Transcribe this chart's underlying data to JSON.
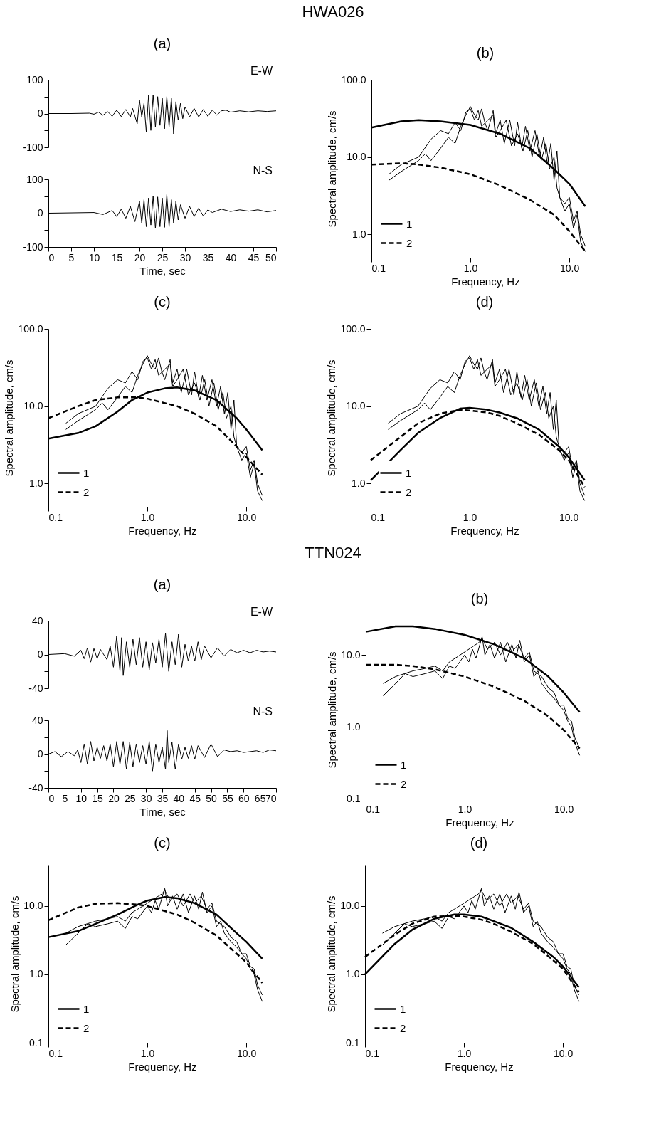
{
  "chart_data": [
    {
      "type": "other",
      "title": "HWA026"
    },
    {
      "type": "line",
      "title": "(a)",
      "annotations": [
        "E-W"
      ],
      "tick_labels": "y",
      "xlim": [
        0,
        50
      ],
      "ylim": [
        -100,
        100
      ],
      "xticks": [
        0,
        5,
        10,
        15,
        20,
        25,
        30,
        35,
        40,
        45,
        50
      ],
      "yticks": [
        -100,
        {
          "value": -50,
          "label": null
        },
        0,
        {
          "value": 50,
          "label": null
        },
        100
      ],
      "grid": false,
      "x": [
        0,
        5,
        9,
        10,
        11,
        12,
        13,
        14,
        15,
        16,
        17,
        18,
        18.5,
        19,
        19.5,
        20,
        20.5,
        21,
        21.5,
        22,
        22.5,
        23,
        23.5,
        24,
        24.5,
        25,
        25.5,
        26,
        26.5,
        27,
        27.5,
        28,
        28.5,
        29,
        29.5,
        30,
        31,
        32,
        33,
        34,
        35,
        36,
        37,
        38,
        39,
        40,
        42,
        44,
        46,
        48,
        50
      ],
      "series": [
        {
          "color": "#000000",
          "values": [
            0,
            0,
            1,
            -2,
            4,
            -5,
            6,
            -8,
            10,
            -9,
            12,
            -10,
            15,
            -8,
            -30,
            40,
            -10,
            30,
            -55,
            55,
            -50,
            55,
            -40,
            50,
            -35,
            45,
            -45,
            50,
            -40,
            45,
            -60,
            35,
            -20,
            30,
            -15,
            20,
            -10,
            15,
            -10,
            12,
            -8,
            10,
            -5,
            8,
            10,
            4,
            8,
            5,
            8,
            6,
            8
          ]
        }
      ]
    },
    {
      "type": "line",
      "xlabel": "Time, sec",
      "annotations": [
        "N-S"
      ],
      "xlim": [
        0,
        50
      ],
      "ylim": [
        -100,
        100
      ],
      "xticks": [
        0,
        5,
        10,
        15,
        20,
        25,
        30,
        35,
        40,
        45,
        50
      ],
      "yticks": [
        -100,
        {
          "value": -50,
          "label": null
        },
        0,
        {
          "value": 50,
          "label": null
        },
        100
      ],
      "grid": false,
      "x": [
        0,
        10,
        12,
        14,
        15,
        16,
        17,
        18,
        19,
        20,
        20.5,
        21,
        21.5,
        22,
        22.5,
        23,
        23.5,
        24,
        24.5,
        25,
        25.5,
        26,
        26.5,
        27,
        27.5,
        28,
        28.5,
        29,
        30,
        31,
        32,
        33,
        34,
        35,
        36,
        38,
        40,
        42,
        44,
        46,
        48,
        50
      ],
      "series": [
        {
          "color": "#000000",
          "values": [
            0,
            2,
            -4,
            8,
            -10,
            12,
            -15,
            20,
            -25,
            35,
            -30,
            40,
            -40,
            45,
            -35,
            50,
            -45,
            48,
            -40,
            45,
            -42,
            55,
            -40,
            40,
            -30,
            35,
            -20,
            25,
            -15,
            20,
            -10,
            15,
            -8,
            10,
            2,
            12,
            5,
            10,
            6,
            10,
            4,
            8
          ]
        }
      ]
    },
    {
      "type": "line",
      "title": "(b)",
      "xlabel": "Frequency, Hz",
      "ylabel": "Spectral amplitude, cm/s",
      "log": "xy",
      "grid": false,
      "legend": "bottom left",
      "xlim": [
        0.1,
        20
      ],
      "ylim": [
        0.5,
        100
      ],
      "xticks": [
        {
          "value": 0.1,
          "label": "0.1"
        },
        {
          "value": 1,
          "label": "1.0"
        },
        {
          "value": 10,
          "label": "10.0"
        }
      ],
      "yticks": [
        {
          "value": 1,
          "label": "1.0"
        },
        {
          "value": 10,
          "label": "10.0"
        },
        {
          "value": 100,
          "label": "100.0"
        }
      ],
      "series": [
        {
          "color": "#000000",
          "line_style": "solid",
          "x": [
            0.15,
            0.2,
            0.3,
            0.35,
            0.4,
            0.5,
            0.6,
            0.7,
            0.8,
            0.9,
            1.0,
            1.1,
            1.2,
            1.3,
            1.4,
            1.5,
            1.7,
            1.8,
            2,
            2.2,
            2.5,
            2.8,
            3,
            3.3,
            3.6,
            4,
            4.5,
            5,
            5.5,
            6,
            6.5,
            7,
            7.5,
            8,
            9,
            10,
            11,
            12,
            13,
            14.5
          ],
          "values": [
            5,
            6.5,
            9,
            11,
            9,
            13,
            18,
            15,
            25,
            35,
            45,
            35,
            30,
            42,
            28,
            22,
            40,
            20,
            30,
            15,
            30,
            14,
            28,
            13,
            25,
            12,
            22,
            10,
            18,
            8,
            15,
            5,
            12,
            3,
            2.5,
            3,
            1.5,
            2,
            1,
            0.7
          ]
        },
        {
          "color": "#000000",
          "line_style": "solid",
          "x": [
            0.15,
            0.2,
            0.3,
            0.4,
            0.5,
            0.6,
            0.7,
            0.8,
            0.9,
            1.0,
            1.1,
            1.2,
            1.3,
            1.5,
            1.7,
            1.8,
            2,
            2.3,
            2.6,
            3,
            3.4,
            3.8,
            4.2,
            4.7,
            5.2,
            5.8,
            6.3,
            7,
            7.5,
            8,
            9,
            10,
            11,
            12,
            13,
            14.5
          ],
          "values": [
            6,
            8,
            10,
            17,
            22,
            20,
            28,
            22,
            38,
            42,
            30,
            40,
            25,
            30,
            35,
            18,
            22,
            30,
            14,
            20,
            12,
            22,
            10,
            20,
            9,
            15,
            7,
            10,
            4,
            3,
            2,
            2.5,
            1.2,
            1.8,
            0.8,
            0.6
          ]
        },
        {
          "name": "1",
          "color": "#000000",
          "line_style": "solid",
          "x": [
            0.1,
            0.2,
            0.3,
            0.5,
            1,
            2,
            4,
            7,
            10,
            14.5
          ],
          "values": [
            24,
            29,
            30,
            29,
            26,
            20,
            13,
            7,
            4.5,
            2.3
          ]
        },
        {
          "name": "2",
          "color": "#000000",
          "line_style": "dashed",
          "x": [
            0.1,
            0.2,
            0.3,
            0.5,
            1,
            2,
            4,
            7,
            10,
            14.5
          ],
          "values": [
            8,
            8.3,
            8,
            7.3,
            6,
            4.3,
            2.8,
            1.8,
            1.1,
            0.6
          ]
        }
      ]
    },
    {
      "type": "line",
      "title": "(c)",
      "xlabel": "Frequency, Hz",
      "ylabel": "Spectral amplitude, cm/s",
      "log": "xy",
      "grid": false,
      "legend": "bottom left",
      "xlim": [
        0.1,
        20
      ],
      "ylim": [
        0.5,
        100
      ],
      "xticks": [
        {
          "value": 0.1,
          "label": "0.1"
        },
        {
          "value": 1,
          "label": "1.0"
        },
        {
          "value": 10,
          "label": "10.0"
        }
      ],
      "yticks": [
        {
          "value": 1,
          "label": "1.0"
        },
        {
          "value": 10,
          "label": "10.0"
        },
        {
          "value": 100,
          "label": "100.0"
        }
      ],
      "series": [
        {
          "color": "#000000",
          "line_style": "solid",
          "x": [
            0.15,
            0.2,
            0.3,
            0.35,
            0.4,
            0.5,
            0.6,
            0.7,
            0.8,
            0.9,
            1.0,
            1.1,
            1.2,
            1.3,
            1.4,
            1.5,
            1.7,
            1.8,
            2,
            2.2,
            2.5,
            2.8,
            3,
            3.3,
            3.6,
            4,
            4.5,
            5,
            5.5,
            6,
            6.5,
            7,
            7.5,
            8,
            9,
            10,
            11,
            12,
            13,
            14.5
          ],
          "values": [
            5,
            6.5,
            9,
            11,
            9,
            13,
            18,
            15,
            25,
            35,
            45,
            35,
            30,
            42,
            28,
            22,
            40,
            20,
            30,
            15,
            30,
            14,
            28,
            13,
            25,
            12,
            22,
            10,
            18,
            8,
            15,
            5,
            12,
            3,
            2.5,
            3,
            1.5,
            2,
            1,
            0.7
          ]
        },
        {
          "color": "#000000",
          "line_style": "solid",
          "x": [
            0.15,
            0.2,
            0.3,
            0.4,
            0.5,
            0.6,
            0.7,
            0.8,
            0.9,
            1.0,
            1.1,
            1.2,
            1.3,
            1.5,
            1.7,
            1.8,
            2,
            2.3,
            2.6,
            3,
            3.4,
            3.8,
            4.2,
            4.7,
            5.2,
            5.8,
            6.3,
            7,
            7.5,
            8,
            9,
            10,
            11,
            12,
            13,
            14.5
          ],
          "values": [
            6,
            8,
            10,
            17,
            22,
            20,
            28,
            22,
            38,
            42,
            30,
            40,
            25,
            30,
            35,
            18,
            22,
            30,
            14,
            20,
            12,
            22,
            10,
            20,
            9,
            15,
            7,
            10,
            4,
            3,
            2,
            2.5,
            1.2,
            1.8,
            0.8,
            0.6
          ]
        },
        {
          "name": "1",
          "color": "#000000",
          "line_style": "solid",
          "x": [
            0.1,
            0.2,
            0.3,
            0.5,
            0.7,
            1,
            1.5,
            2,
            3,
            5,
            8,
            10,
            14.5
          ],
          "values": [
            3.8,
            4.5,
            5.5,
            8.5,
            12,
            15,
            17,
            17.5,
            16,
            12,
            7,
            5,
            2.7
          ]
        },
        {
          "name": "2",
          "color": "#000000",
          "line_style": "dashed",
          "x": [
            0.1,
            0.2,
            0.3,
            0.5,
            0.8,
            1,
            2,
            3,
            5,
            8,
            10,
            14.5
          ],
          "values": [
            7,
            10,
            12,
            13,
            13,
            12.5,
            10,
            8,
            5.5,
            3,
            2.2,
            1.3
          ]
        }
      ]
    },
    {
      "type": "line",
      "title": "(d)",
      "xlabel": "Frequency, Hz",
      "ylabel": "Spectral amplitude, cm/s",
      "log": "xy",
      "grid": false,
      "legend": "bottom left",
      "xlim": [
        0.1,
        20
      ],
      "ylim": [
        0.5,
        100
      ],
      "xticks": [
        {
          "value": 0.1,
          "label": "0.1"
        },
        {
          "value": 1,
          "label": "1.0"
        },
        {
          "value": 10,
          "label": "10.0"
        }
      ],
      "yticks": [
        {
          "value": 1,
          "label": "1.0"
        },
        {
          "value": 10,
          "label": "10.0"
        },
        {
          "value": 100,
          "label": "100.0"
        }
      ],
      "series": [
        {
          "color": "#000000",
          "line_style": "solid",
          "x": [
            0.15,
            0.2,
            0.3,
            0.35,
            0.4,
            0.5,
            0.6,
            0.7,
            0.8,
            0.9,
            1.0,
            1.1,
            1.2,
            1.3,
            1.4,
            1.5,
            1.7,
            1.8,
            2,
            2.2,
            2.5,
            2.8,
            3,
            3.3,
            3.6,
            4,
            4.5,
            5,
            5.5,
            6,
            6.5,
            7,
            7.5,
            8,
            9,
            10,
            11,
            12,
            13,
            14.5
          ],
          "values": [
            5,
            6.5,
            9,
            11,
            9,
            13,
            18,
            15,
            25,
            35,
            45,
            35,
            30,
            42,
            28,
            22,
            40,
            20,
            30,
            15,
            30,
            14,
            28,
            13,
            25,
            12,
            22,
            10,
            18,
            8,
            15,
            5,
            12,
            3,
            2.5,
            3,
            1.5,
            2,
            1,
            0.7
          ]
        },
        {
          "color": "#000000",
          "line_style": "solid",
          "x": [
            0.15,
            0.2,
            0.3,
            0.4,
            0.5,
            0.6,
            0.7,
            0.8,
            0.9,
            1.0,
            1.1,
            1.2,
            1.3,
            1.5,
            1.7,
            1.8,
            2,
            2.3,
            2.6,
            3,
            3.4,
            3.8,
            4.2,
            4.7,
            5.2,
            5.8,
            6.3,
            7,
            7.5,
            8,
            9,
            10,
            11,
            12,
            13,
            14.5
          ],
          "values": [
            6,
            8,
            10,
            17,
            22,
            20,
            28,
            22,
            38,
            42,
            30,
            40,
            25,
            30,
            35,
            18,
            22,
            30,
            14,
            20,
            12,
            22,
            10,
            20,
            9,
            15,
            7,
            10,
            4,
            3,
            2,
            2.5,
            1.2,
            1.8,
            0.8,
            0.6
          ]
        },
        {
          "name": "1",
          "color": "#000000",
          "line_style": "solid",
          "x": [
            0.1,
            0.2,
            0.3,
            0.5,
            0.8,
            1,
            1.5,
            2,
            3,
            5,
            8,
            10,
            14.5
          ],
          "values": [
            1.1,
            2.7,
            4.5,
            7,
            9.3,
            9.5,
            9,
            8.3,
            7,
            5,
            3,
            2.2,
            1.1
          ]
        },
        {
          "name": "2",
          "color": "#000000",
          "line_style": "dashed",
          "x": [
            0.1,
            0.2,
            0.3,
            0.5,
            0.8,
            1,
            1.5,
            2,
            3,
            5,
            8,
            10,
            14.5
          ],
          "values": [
            2,
            4,
            6,
            8,
            9,
            8.8,
            8.3,
            7.5,
            6,
            4.3,
            2.7,
            2,
            0.9
          ]
        }
      ]
    },
    {
      "type": "other",
      "title": "TTN024"
    },
    {
      "type": "line",
      "title": "(a)",
      "annotations": [
        "E-W"
      ],
      "tick_labels": "y",
      "xlim": [
        0,
        70
      ],
      "ylim": [
        -40,
        40
      ],
      "xticks": [
        0,
        5,
        10,
        15,
        20,
        25,
        30,
        35,
        40,
        45,
        50,
        55,
        60,
        65,
        70
      ],
      "yticks": [
        -40,
        {
          "value": -20,
          "label": null
        },
        0,
        {
          "value": 20,
          "label": null
        },
        40
      ],
      "grid": false,
      "x": [
        0,
        5,
        8,
        10,
        11,
        12,
        13,
        14,
        15,
        16,
        18,
        19,
        20,
        21,
        22,
        22.5,
        23,
        24,
        25,
        26,
        27,
        28,
        29,
        30,
        31,
        32,
        33,
        34,
        35,
        36,
        37,
        38,
        39,
        40,
        41,
        42,
        43,
        44,
        45,
        46,
        47,
        48,
        50,
        52,
        54,
        56,
        58,
        60,
        62,
        64,
        66,
        68,
        70
      ],
      "series": [
        {
          "color": "#000000",
          "values": [
            0,
            1,
            -2,
            5,
            -5,
            8,
            -9,
            7,
            -5,
            6,
            -6,
            10,
            -15,
            22,
            -20,
            20,
            -25,
            15,
            -15,
            18,
            -12,
            20,
            -15,
            15,
            -18,
            14,
            -10,
            18,
            -15,
            25,
            -20,
            15,
            -12,
            24,
            -15,
            12,
            -8,
            10,
            -8,
            15,
            -6,
            10,
            -4,
            8,
            -2,
            6,
            2,
            5,
            2,
            5,
            3,
            4,
            3
          ]
        }
      ]
    },
    {
      "type": "line",
      "xlabel": "Time, sec",
      "annotations": [
        "N-S"
      ],
      "xlim": [
        0,
        70
      ],
      "ylim": [
        -40,
        40
      ],
      "xticks": [
        0,
        5,
        10,
        15,
        20,
        25,
        30,
        35,
        40,
        45,
        50,
        55,
        60,
        65,
        70
      ],
      "yticks": [
        -40,
        {
          "value": -20,
          "label": null
        },
        0,
        {
          "value": 20,
          "label": null
        },
        40
      ],
      "grid": false,
      "x": [
        0,
        2,
        4,
        6,
        8,
        9,
        10,
        11,
        12,
        13,
        14,
        15,
        16,
        17,
        18,
        19,
        20,
        21,
        22,
        23,
        24,
        25,
        26,
        27,
        28,
        29,
        30,
        31,
        32,
        33,
        34,
        35,
        36,
        36.5,
        37,
        38,
        39,
        40,
        41,
        42,
        43,
        44,
        45,
        46,
        48,
        50,
        52,
        54,
        56,
        58,
        60,
        62,
        64,
        66,
        68,
        70
      ],
      "series": [
        {
          "color": "#000000",
          "values": [
            0,
            3,
            -3,
            3,
            -2,
            5,
            -10,
            12,
            -12,
            15,
            -8,
            8,
            -5,
            10,
            -8,
            12,
            -15,
            15,
            -12,
            15,
            -18,
            14,
            -15,
            12,
            -10,
            10,
            -12,
            15,
            -20,
            12,
            -10,
            8,
            -18,
            28,
            -10,
            14,
            -18,
            12,
            -6,
            8,
            -5,
            10,
            -6,
            10,
            -4,
            12,
            -3,
            5,
            3,
            4,
            2,
            3,
            4,
            2,
            5,
            4
          ]
        }
      ]
    },
    {
      "type": "line",
      "title": "(b)",
      "xlabel": "Frequency, Hz",
      "ylabel": "Spectral amplitude, cm/s",
      "log": "xy",
      "grid": false,
      "legend": "bottom left",
      "xlim": [
        0.1,
        20
      ],
      "ylim": [
        0.1,
        30
      ],
      "xticks": [
        {
          "value": 0.1,
          "label": "0.1"
        },
        {
          "value": 1,
          "label": "1.0"
        },
        {
          "value": 10,
          "label": "10.0"
        }
      ],
      "yticks": [
        {
          "value": 0.1,
          "label": "0.1"
        },
        {
          "value": 1,
          "label": "1.0"
        },
        {
          "value": 10,
          "label": "10.0"
        }
      ],
      "series": [
        {
          "color": "#000000",
          "line_style": "solid",
          "x": [
            0.15,
            0.2,
            0.25,
            0.3,
            0.4,
            0.5,
            0.6,
            0.7,
            0.8,
            1.0,
            1.1,
            1.2,
            1.3,
            1.5,
            1.6,
            1.8,
            2,
            2.3,
            2.6,
            3,
            3.3,
            3.6,
            4,
            4.5,
            5,
            5.5,
            6,
            7,
            8,
            9,
            10,
            11,
            12,
            13,
            14.5
          ],
          "values": [
            2.7,
            4,
            5.5,
            5,
            5.5,
            6,
            4.7,
            7,
            6.5,
            10,
            8,
            12,
            9,
            18,
            10,
            14,
            9,
            15,
            8,
            14,
            9,
            16,
            8,
            10,
            5,
            6,
            4,
            3,
            2.5,
            2,
            1.7,
            1.2,
            1,
            0.6,
            0.4
          ]
        },
        {
          "color": "#000000",
          "line_style": "solid",
          "x": [
            0.15,
            0.2,
            0.3,
            0.4,
            0.5,
            0.6,
            0.7,
            0.8,
            1.0,
            1.2,
            1.4,
            1.5,
            1.7,
            2,
            2.3,
            2.7,
            3,
            3.5,
            4,
            4.5,
            5,
            6,
            7,
            8,
            9,
            10,
            11,
            12,
            13,
            14.5
          ],
          "values": [
            4,
            5,
            6,
            6.5,
            7,
            6,
            8,
            9,
            11,
            13,
            15,
            17,
            12,
            15,
            10,
            15,
            11,
            14,
            9,
            11,
            6,
            5,
            3.5,
            3,
            2,
            2,
            1.3,
            1.2,
            0.7,
            0.5
          ]
        },
        {
          "name": "1",
          "color": "#000000",
          "line_style": "solid",
          "x": [
            0.1,
            0.2,
            0.3,
            0.5,
            1,
            2,
            4,
            7,
            10,
            14.5
          ],
          "values": [
            21,
            25,
            25,
            23,
            19,
            14,
            9,
            5,
            3,
            1.6
          ]
        },
        {
          "name": "2",
          "color": "#000000",
          "line_style": "dashed",
          "x": [
            0.1,
            0.2,
            0.3,
            0.5,
            1,
            2,
            4,
            7,
            10,
            14.5
          ],
          "values": [
            7.3,
            7.3,
            7,
            6.3,
            5,
            3.6,
            2.3,
            1.4,
            0.9,
            0.5
          ]
        }
      ]
    },
    {
      "type": "line",
      "title": "(c)",
      "xlabel": "Frequency, Hz",
      "ylabel": "Spectral amplitude, cm/s",
      "log": "xy",
      "grid": false,
      "legend": "bottom left",
      "xlim": [
        0.1,
        20
      ],
      "ylim": [
        0.1,
        40
      ],
      "xticks": [
        {
          "value": 0.1,
          "label": "0.1"
        },
        {
          "value": 1,
          "label": "1.0"
        },
        {
          "value": 10,
          "label": "10.0"
        }
      ],
      "yticks": [
        {
          "value": 0.1,
          "label": "0.1"
        },
        {
          "value": 1,
          "label": "1.0"
        },
        {
          "value": 10,
          "label": "10.0"
        }
      ],
      "series": [
        {
          "color": "#000000",
          "line_style": "solid",
          "x": [
            0.15,
            0.2,
            0.25,
            0.3,
            0.4,
            0.5,
            0.6,
            0.7,
            0.8,
            1.0,
            1.1,
            1.2,
            1.3,
            1.5,
            1.6,
            1.8,
            2,
            2.3,
            2.6,
            3,
            3.3,
            3.6,
            4,
            4.5,
            5,
            5.5,
            6,
            7,
            8,
            9,
            10,
            11,
            12,
            13,
            14.5
          ],
          "values": [
            2.7,
            4,
            5.5,
            5,
            5.5,
            6,
            4.7,
            7,
            6.5,
            10,
            8,
            12,
            9,
            18,
            10,
            14,
            9,
            15,
            8,
            14,
            9,
            16,
            8,
            10,
            5,
            6,
            4,
            3,
            2.5,
            2,
            1.7,
            1.2,
            1,
            0.6,
            0.4
          ]
        },
        {
          "color": "#000000",
          "line_style": "solid",
          "x": [
            0.15,
            0.2,
            0.3,
            0.4,
            0.5,
            0.6,
            0.7,
            0.8,
            1.0,
            1.2,
            1.4,
            1.5,
            1.7,
            2,
            2.3,
            2.7,
            3,
            3.5,
            4,
            4.5,
            5,
            6,
            7,
            8,
            9,
            10,
            11,
            12,
            13,
            14.5
          ],
          "values": [
            4,
            5,
            6,
            6.5,
            7,
            6,
            8,
            9,
            11,
            13,
            15,
            17,
            12,
            15,
            10,
            15,
            11,
            14,
            9,
            11,
            6,
            5,
            3.5,
            3,
            2,
            2,
            1.3,
            1.2,
            0.7,
            0.5
          ]
        },
        {
          "name": "1",
          "color": "#000000",
          "line_style": "solid",
          "x": [
            0.1,
            0.2,
            0.3,
            0.5,
            0.8,
            1,
            1.5,
            2,
            3,
            5,
            8,
            10,
            14.5
          ],
          "values": [
            3.5,
            4.3,
            5.5,
            7.5,
            10.5,
            12,
            13.5,
            13,
            11,
            7.5,
            4,
            3,
            1.7
          ]
        },
        {
          "name": "2",
          "color": "#000000",
          "line_style": "dashed",
          "x": [
            0.1,
            0.2,
            0.3,
            0.5,
            0.8,
            1,
            2,
            3,
            5,
            8,
            10,
            14.5
          ],
          "values": [
            6.2,
            9.5,
            10.8,
            11,
            10.5,
            10,
            7.5,
            5.7,
            3.7,
            2,
            1.5,
            0.75
          ]
        }
      ]
    },
    {
      "type": "line",
      "title": "(d)",
      "xlabel": "Frequency, Hz",
      "ylabel": "Spectral amplitude, cm/s",
      "log": "xy",
      "grid": false,
      "legend": "bottom left",
      "xlim": [
        0.1,
        20
      ],
      "ylim": [
        0.1,
        40
      ],
      "xticks": [
        {
          "value": 0.1,
          "label": "0.1"
        },
        {
          "value": 1,
          "label": "1.0"
        },
        {
          "value": 10,
          "label": "10.0"
        }
      ],
      "yticks": [
        {
          "value": 0.1,
          "label": "0.1"
        },
        {
          "value": 1,
          "label": "1.0"
        },
        {
          "value": 10,
          "label": "10.0"
        }
      ],
      "series": [
        {
          "color": "#000000",
          "line_style": "solid",
          "x": [
            0.15,
            0.2,
            0.25,
            0.3,
            0.4,
            0.5,
            0.6,
            0.7,
            0.8,
            1.0,
            1.1,
            1.2,
            1.3,
            1.5,
            1.6,
            1.8,
            2,
            2.3,
            2.6,
            3,
            3.3,
            3.6,
            4,
            4.5,
            5,
            5.5,
            6,
            7,
            8,
            9,
            10,
            11,
            12,
            13,
            14.5
          ],
          "values": [
            2.7,
            4,
            5.5,
            5,
            5.5,
            6,
            4.7,
            7,
            6.5,
            10,
            8,
            12,
            9,
            18,
            10,
            14,
            9,
            15,
            8,
            14,
            9,
            16,
            8,
            10,
            5,
            6,
            4,
            3,
            2.5,
            2,
            1.7,
            1.2,
            1,
            0.6,
            0.4
          ]
        },
        {
          "color": "#000000",
          "line_style": "solid",
          "x": [
            0.15,
            0.2,
            0.3,
            0.4,
            0.5,
            0.6,
            0.7,
            0.8,
            1.0,
            1.2,
            1.4,
            1.5,
            1.7,
            2,
            2.3,
            2.7,
            3,
            3.5,
            4,
            4.5,
            5,
            6,
            7,
            8,
            9,
            10,
            11,
            12,
            13,
            14.5
          ],
          "values": [
            4,
            5,
            6,
            6.5,
            7,
            6,
            8,
            9,
            11,
            13,
            15,
            17,
            12,
            15,
            10,
            15,
            11,
            14,
            9,
            11,
            6,
            5,
            3.5,
            3,
            2,
            2,
            1.3,
            1.2,
            0.7,
            0.5
          ]
        },
        {
          "name": "1",
          "color": "#000000",
          "line_style": "solid",
          "x": [
            0.1,
            0.2,
            0.3,
            0.5,
            0.8,
            1,
            1.5,
            2,
            3,
            5,
            8,
            10,
            14.5
          ],
          "values": [
            1,
            2.8,
            4.5,
            6.5,
            7.5,
            7.5,
            7,
            6,
            4.8,
            3,
            1.8,
            1.3,
            0.65
          ]
        },
        {
          "name": "2",
          "color": "#000000",
          "line_style": "dashed",
          "x": [
            0.1,
            0.2,
            0.3,
            0.5,
            0.8,
            1,
            1.5,
            2,
            3,
            5,
            8,
            10,
            14.5
          ],
          "values": [
            1.8,
            3.8,
            5.5,
            7,
            7.2,
            7,
            6.3,
            5.5,
            4.2,
            2.8,
            1.6,
            1.2,
            0.55
          ]
        }
      ]
    }
  ]
}
